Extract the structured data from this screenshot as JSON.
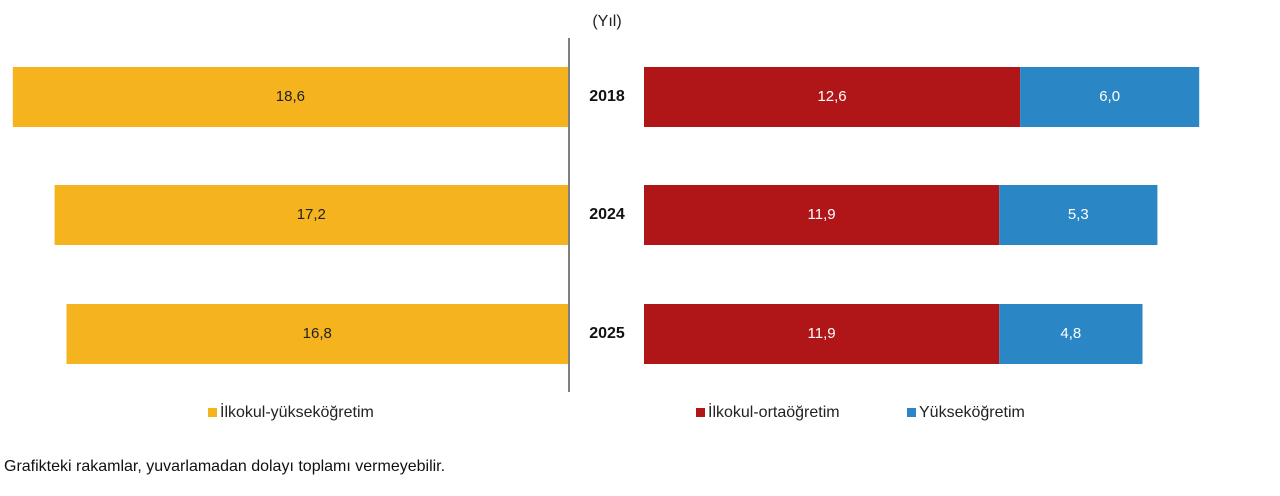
{
  "chart_data": {
    "type": "bar",
    "orientation": "horizontal",
    "layout": "butterfly",
    "y_header": "(Yıl)",
    "categories": [
      "2018",
      "2024",
      "2025"
    ],
    "series": [
      {
        "name": "İlkokul-yükseköğretim",
        "side": "left",
        "color": "#F5B41E",
        "values": [
          18.6,
          17.2,
          16.8
        ],
        "labels": [
          "18,6",
          "17,2",
          "16,8"
        ]
      },
      {
        "name": "İlkokul-ortaöğretim",
        "side": "right",
        "stack": 1,
        "color": "#B01618",
        "values": [
          12.6,
          11.9,
          11.9
        ],
        "labels": [
          "12,6",
          "11,9",
          "11,9"
        ]
      },
      {
        "name": "Yükseköğretim",
        "side": "right",
        "stack": 2,
        "color": "#2B86C5",
        "values": [
          6.0,
          5.3,
          4.8
        ],
        "labels": [
          "6,0",
          "5,3",
          "4,8"
        ]
      }
    ],
    "grid": false,
    "legend_position": "bottom"
  },
  "footnote": "Grafikteki rakamlar, yuvarlamadan dolayı toplamı vermeyebilir."
}
